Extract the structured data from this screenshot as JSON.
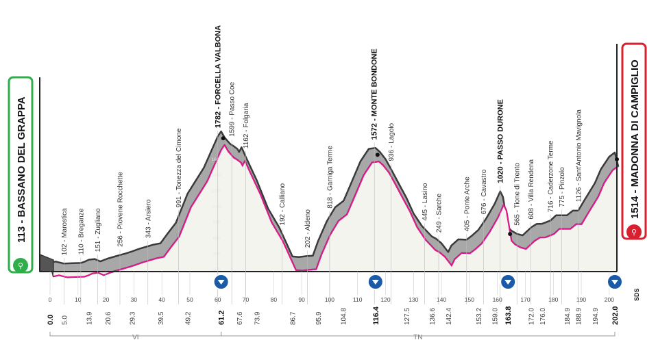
{
  "chart_data": {
    "type": "area",
    "xlim": [
      0,
      202
    ],
    "ylim": [
      0,
      1800
    ],
    "x_ticks": [
      0,
      10,
      20,
      30,
      40,
      50,
      60,
      70,
      80,
      90,
      100,
      110,
      120,
      130,
      140,
      150,
      160,
      170,
      180,
      190,
      200
    ],
    "y_ticks": [
      200,
      400,
      600,
      800,
      1000,
      1200,
      1400,
      1600
    ],
    "start": {
      "name": "113 - BASSANO DEL GRAPPA",
      "km": 0,
      "elevation": 113
    },
    "finish": {
      "name": "1514 - MADONNA DI CAMPIGLIO",
      "km": 202,
      "elevation": 1514
    },
    "profile": [
      [
        0,
        113
      ],
      [
        2,
        128
      ],
      [
        5,
        102
      ],
      [
        8,
        106
      ],
      [
        11,
        110
      ],
      [
        12.5,
        128
      ],
      [
        13.9,
        151
      ],
      [
        16,
        160
      ],
      [
        18,
        130
      ],
      [
        20.6,
        165
      ],
      [
        24,
        200
      ],
      [
        27,
        230
      ],
      [
        29.3,
        256
      ],
      [
        32,
        290
      ],
      [
        35,
        322
      ],
      [
        37,
        343
      ],
      [
        39.5,
        360
      ],
      [
        42,
        480
      ],
      [
        45,
        620
      ],
      [
        49.2,
        991
      ],
      [
        52,
        1150
      ],
      [
        55,
        1320
      ],
      [
        58,
        1560
      ],
      [
        60,
        1720
      ],
      [
        61.2,
        1782
      ],
      [
        62.5,
        1700
      ],
      [
        64.5,
        1620
      ],
      [
        65.5,
        1599
      ],
      [
        67,
        1560
      ],
      [
        67.6,
        1520
      ],
      [
        68.5,
        1580
      ],
      [
        70,
        1460
      ],
      [
        73.9,
        1162
      ],
      [
        78,
        800
      ],
      [
        82,
        560
      ],
      [
        86.7,
        192
      ],
      [
        89,
        185
      ],
      [
        92,
        198
      ],
      [
        94,
        202
      ],
      [
        95.9,
        390
      ],
      [
        99,
        640
      ],
      [
        102,
        818
      ],
      [
        105,
        900
      ],
      [
        108,
        1150
      ],
      [
        111,
        1400
      ],
      [
        114,
        1560
      ],
      [
        116.4,
        1572
      ],
      [
        118,
        1520
      ],
      [
        120,
        1430
      ],
      [
        122,
        1300
      ],
      [
        125,
        1100
      ],
      [
        127.5,
        936
      ],
      [
        130,
        740
      ],
      [
        133,
        580
      ],
      [
        136.6,
        445
      ],
      [
        138,
        420
      ],
      [
        140,
        360
      ],
      [
        142.4,
        249
      ],
      [
        143.5,
        330
      ],
      [
        146,
        410
      ],
      [
        149,
        405
      ],
      [
        151,
        460
      ],
      [
        153.2,
        530
      ],
      [
        156,
        676
      ],
      [
        159,
        860
      ],
      [
        161,
        1020
      ],
      [
        162,
        950
      ],
      [
        163.8,
        565
      ],
      [
        165,
        520
      ],
      [
        167,
        480
      ],
      [
        169,
        460
      ],
      [
        172,
        560
      ],
      [
        174,
        605
      ],
      [
        176,
        608
      ],
      [
        179,
        650
      ],
      [
        181,
        716
      ],
      [
        184.9,
        716
      ],
      [
        187,
        775
      ],
      [
        188.9,
        775
      ],
      [
        191,
        900
      ],
      [
        194.9,
        1126
      ],
      [
        197,
        1300
      ],
      [
        200,
        1460
      ],
      [
        202,
        1514
      ]
    ],
    "points": [
      {
        "km": 5,
        "label": "102 - Marostica"
      },
      {
        "km": 11,
        "label": "110 - Breganze"
      },
      {
        "km": 17,
        "label": "151 - Zugliano"
      },
      {
        "km": 25,
        "label": "256 - Piovene Rocchette"
      },
      {
        "km": 35,
        "label": "343 - Arsiero"
      },
      {
        "km": 46,
        "label": "991 - Tonezza del Cimone"
      },
      {
        "km": 60,
        "label": "1782 - FORCELLA VALBONA",
        "gpm": true
      },
      {
        "km": 65,
        "label": "1599 - Passo Coe"
      },
      {
        "km": 70,
        "label": "1162 - Folgaria"
      },
      {
        "km": 83,
        "label": "192 - Calliano"
      },
      {
        "km": 92,
        "label": "202 - Aldeno"
      },
      {
        "km": 100,
        "label": "818 - Garniga Terme"
      },
      {
        "km": 116,
        "label": "1572 - MONTE BONDONE",
        "gpm": true
      },
      {
        "km": 122,
        "label": "936 - Lagolo"
      },
      {
        "km": 134,
        "label": "445 - Lasino"
      },
      {
        "km": 139,
        "label": "249 - Sarche"
      },
      {
        "km": 149,
        "label": "405 - Ponte Arche"
      },
      {
        "km": 155,
        "label": "676 - Cavastro"
      },
      {
        "km": 161,
        "label": "1020 - PASSO DURONE",
        "gpm": true
      },
      {
        "km": 167,
        "label": "565 - Tione di Trento"
      },
      {
        "km": 172,
        "label": "608 - Villa Rendena"
      },
      {
        "km": 179,
        "label": "716 - Caderzone Terme"
      },
      {
        "km": 183,
        "label": "775 - Pinzolo"
      },
      {
        "km": 189,
        "label": "1126 - Sant'Antonio Mavignola"
      }
    ],
    "km_labels": [
      "0.0",
      "5.0",
      "13.9",
      "20.6",
      "29.3",
      "39.5",
      "49.2",
      "61.2",
      "67.6",
      "73.9",
      "86.7",
      "95.9",
      "104.8",
      "116.4",
      "127.5",
      "136.6",
      "142.4",
      "153.2",
      "159.0",
      "163.8",
      "172.0",
      "176.0",
      "184.9",
      "188.9",
      "194.9",
      "202.0"
    ],
    "bold_km": [
      "0.0",
      "61.2",
      "116.4",
      "163.8",
      "202.0"
    ],
    "markers": [
      61.2,
      116.4,
      163.8,
      202
    ],
    "regions": [
      {
        "label": "VI",
        "from": 0,
        "to": 61.2
      },
      {
        "label": "TN",
        "from": 61.2,
        "to": 202
      }
    ],
    "colors": {
      "fill": "#a8a8a8",
      "dark": "#3a3a3a",
      "pink": "#e5168e",
      "start": "#2fae4a",
      "finish": "#d8202f",
      "marker": "#1a5aa6",
      "lower": "#f4f4ee"
    }
  },
  "brand": {
    "logo": "SDS"
  }
}
